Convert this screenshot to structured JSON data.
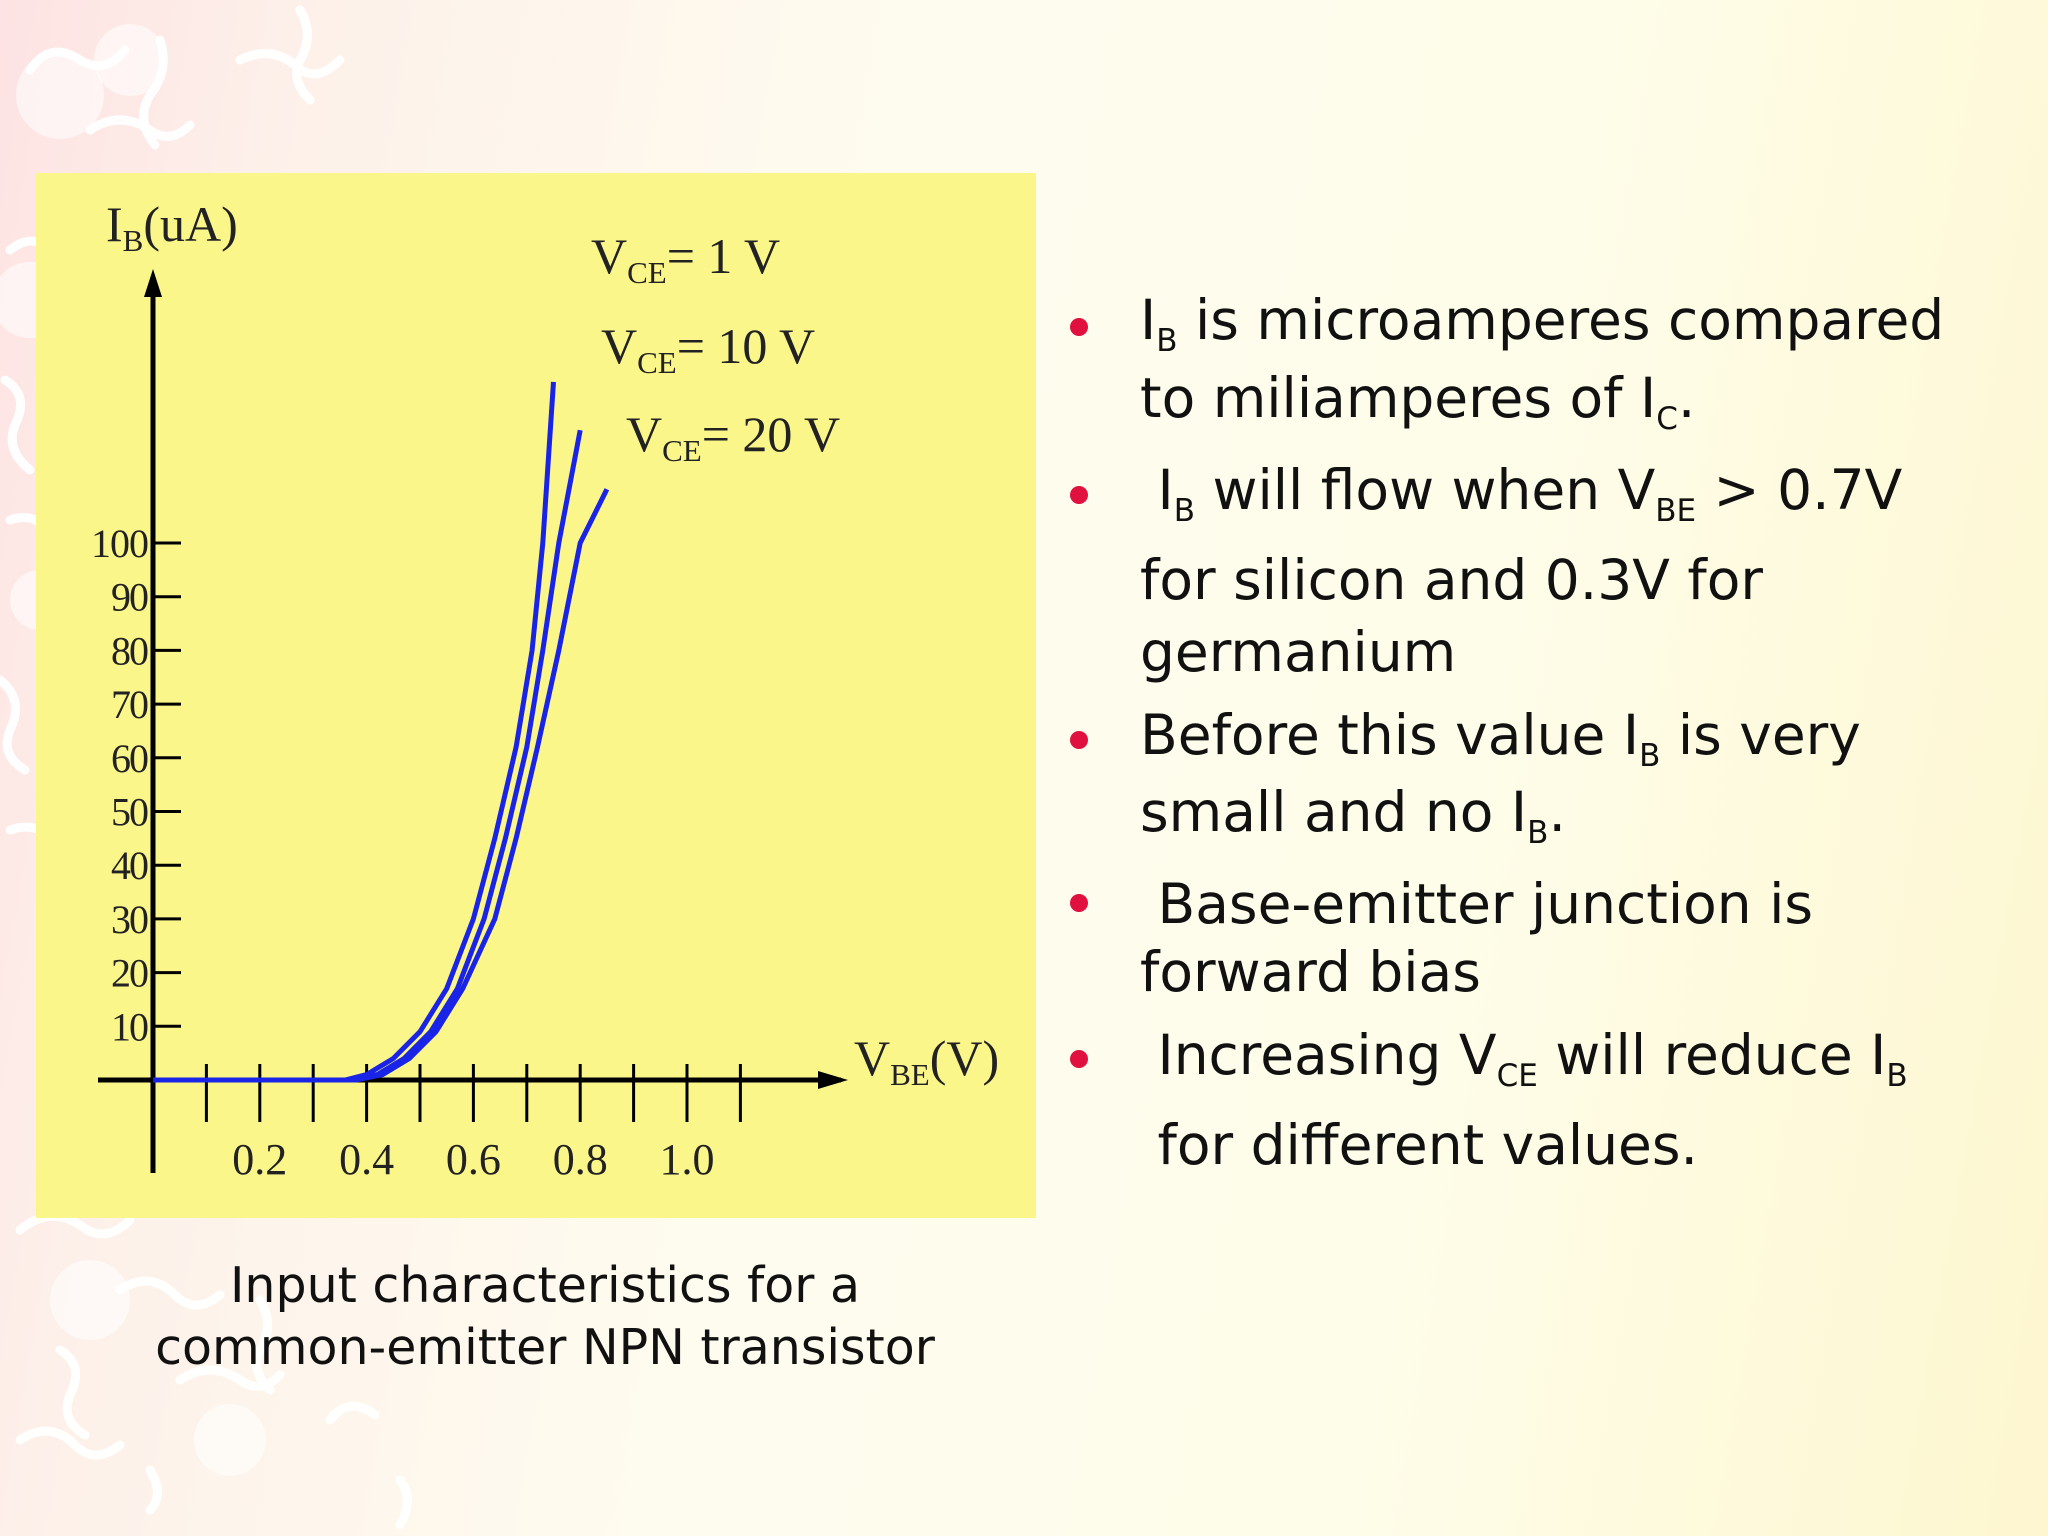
{
  "colors": {
    "panel": "#fbf68a",
    "curve": "#1a24e6",
    "axis": "#000000",
    "bullet": "#e0103f",
    "puzzle": "#ffffff"
  },
  "chart_data": {
    "type": "line",
    "ylabel": {
      "main": "I",
      "sub": "B",
      "unit": "(uA)"
    },
    "xlabel": {
      "main": "V",
      "sub": "BE",
      "unit": "(V)"
    },
    "xticks": [
      0.2,
      0.4,
      0.6,
      0.8,
      1.0
    ],
    "xtick_labels": [
      "0.2",
      "0.4",
      "0.6",
      "0.8",
      "1.0"
    ],
    "yticks": [
      10,
      20,
      30,
      40,
      50,
      60,
      70,
      80,
      90,
      100
    ],
    "ytick_labels": [
      "10",
      "20",
      "30",
      "40",
      "50",
      "60",
      "70",
      "80",
      "90",
      "100"
    ],
    "xlim": [
      0,
      1.2
    ],
    "ylim": [
      0,
      130
    ],
    "grid": false,
    "series": [
      {
        "label_main": "V",
        "label_sub": "CE",
        "label_rest": "= 1 V",
        "points": [
          [
            0,
            0
          ],
          [
            0.36,
            0
          ],
          [
            0.4,
            1
          ],
          [
            0.45,
            4
          ],
          [
            0.5,
            9
          ],
          [
            0.55,
            17
          ],
          [
            0.6,
            30
          ],
          [
            0.64,
            45
          ],
          [
            0.68,
            62
          ],
          [
            0.71,
            80
          ],
          [
            0.73,
            100
          ],
          [
            0.75,
            130
          ]
        ]
      },
      {
        "label_main": "V",
        "label_sub": "CE",
        "label_rest": "= 10 V",
        "points": [
          [
            0,
            0
          ],
          [
            0.37,
            0
          ],
          [
            0.42,
            1
          ],
          [
            0.47,
            4
          ],
          [
            0.52,
            9
          ],
          [
            0.57,
            17
          ],
          [
            0.62,
            30
          ],
          [
            0.66,
            45
          ],
          [
            0.7,
            62
          ],
          [
            0.73,
            80
          ],
          [
            0.76,
            100
          ],
          [
            0.8,
            121
          ]
        ]
      },
      {
        "label_main": "V",
        "label_sub": "CE",
        "label_rest": "= 20 V",
        "points": [
          [
            0,
            0
          ],
          [
            0.38,
            0
          ],
          [
            0.43,
            1
          ],
          [
            0.48,
            4
          ],
          [
            0.53,
            9
          ],
          [
            0.58,
            17
          ],
          [
            0.64,
            30
          ],
          [
            0.68,
            45
          ],
          [
            0.72,
            62
          ],
          [
            0.76,
            80
          ],
          [
            0.8,
            100
          ],
          [
            0.85,
            110
          ]
        ]
      }
    ]
  },
  "caption": {
    "line1": "Input characteristics for a",
    "line2": "common-emitter NPN transistor"
  },
  "bullets": [
    {
      "lines": [
        [
          {
            "t": "I"
          },
          {
            "s": "B"
          },
          {
            "t": " is microamperes compared"
          }
        ],
        [
          {
            "t": "to miliamperes of I"
          },
          {
            "s": "C"
          },
          {
            "t": "."
          }
        ]
      ]
    },
    {
      "lines": [
        [
          {
            "t": " I"
          },
          {
            "s": "B"
          },
          {
            "t": " will flow when V"
          },
          {
            "s": "BE"
          },
          {
            "t": " > 0.7V"
          }
        ],
        [
          {
            "t": "for silicon and 0.3V for"
          }
        ],
        [
          {
            "t": "germanium"
          }
        ]
      ]
    },
    {
      "lines": [
        [
          {
            "t": "Before this value I"
          },
          {
            "s": "B"
          },
          {
            "t": " is very"
          }
        ],
        [
          {
            "t": "small and no I"
          },
          {
            "s": "B"
          },
          {
            "t": "."
          }
        ]
      ]
    },
    {
      "lines": [
        [
          {
            "t": " Base-emitter junction is"
          }
        ],
        [
          {
            "t": "forward bias"
          }
        ]
      ]
    },
    {
      "lines": [
        [
          {
            "t": " Increasing V"
          },
          {
            "s": "CE"
          },
          {
            "t": " will reduce I"
          },
          {
            "s": "B"
          }
        ],
        [
          {
            "t": " for different values."
          }
        ]
      ]
    }
  ]
}
